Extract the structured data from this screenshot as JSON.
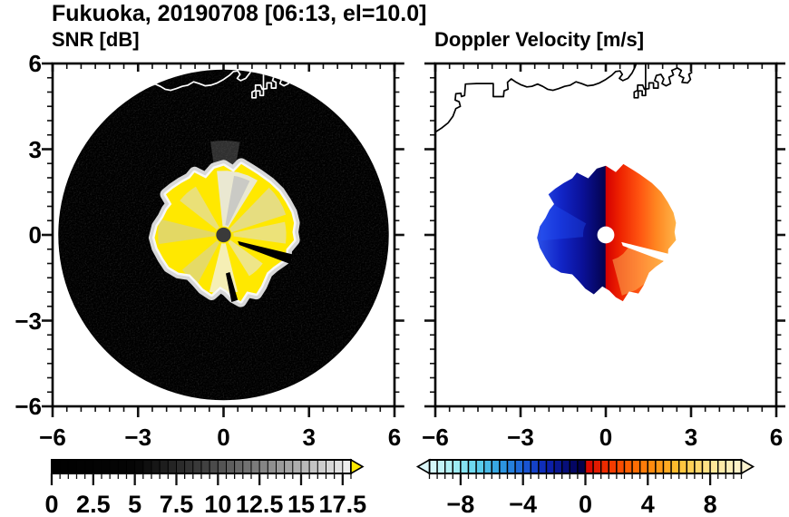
{
  "title": "Fukuoka, 20190708 [06:13, el=10.0]",
  "panels": [
    {
      "id": "snr",
      "subtitle": "SNR [dB]",
      "x_tick_labels": [
        "−6",
        "−3",
        "0",
        "3",
        "6"
      ],
      "y_tick_labels": [
        "6",
        "3",
        "0",
        "−3",
        "−6"
      ],
      "has_y_labels": true
    },
    {
      "id": "doppler",
      "subtitle": "Doppler Velocity [m/s]",
      "x_tick_labels": [
        "−6",
        "−3",
        "0",
        "3",
        "6"
      ],
      "y_tick_labels": [],
      "has_y_labels": false
    }
  ],
  "axes": {
    "min": -6,
    "max": 6,
    "major_ticks": [
      -6,
      -3,
      0,
      3,
      6
    ],
    "minor_step": 0.5
  },
  "map": {
    "coastlines": [
      [
        [
          -6.0,
          3.6
        ],
        [
          -5.78,
          3.74
        ],
        [
          -5.55,
          3.92
        ],
        [
          -5.38,
          4.15
        ],
        [
          -5.28,
          4.42
        ],
        [
          -5.12,
          4.5
        ],
        [
          -5.16,
          4.66
        ],
        [
          -5.3,
          4.72
        ],
        [
          -5.28,
          4.94
        ],
        [
          -5.1,
          4.96
        ],
        [
          -5.08,
          4.84
        ],
        [
          -4.97,
          4.88
        ],
        [
          -4.94,
          5.28
        ],
        [
          -4.55,
          5.3
        ],
        [
          -4.2,
          5.3
        ],
        [
          -3.96,
          5.3
        ],
        [
          -3.96,
          4.84
        ],
        [
          -3.6,
          4.84
        ],
        [
          -3.58,
          5.04
        ],
        [
          -3.44,
          5.1
        ],
        [
          -3.46,
          5.34
        ],
        [
          -3.33,
          5.46
        ],
        [
          -3.18,
          5.36
        ],
        [
          -3.0,
          5.26
        ],
        [
          -2.78,
          5.18
        ],
        [
          -2.6,
          5.2
        ],
        [
          -2.4,
          5.28
        ],
        [
          -2.22,
          5.2
        ],
        [
          -2.05,
          5.1
        ],
        [
          -1.86,
          5.06
        ],
        [
          -1.66,
          5.12
        ],
        [
          -1.45,
          5.2
        ],
        [
          -1.25,
          5.24
        ],
        [
          -1.05,
          5.36
        ],
        [
          -0.86,
          5.3
        ],
        [
          -0.65,
          5.22
        ],
        [
          -0.45,
          5.24
        ],
        [
          -0.22,
          5.32
        ],
        [
          0.0,
          5.44
        ],
        [
          0.2,
          5.58
        ],
        [
          0.35,
          5.72
        ],
        [
          0.5,
          5.74
        ],
        [
          0.58,
          5.62
        ],
        [
          0.48,
          5.48
        ],
        [
          0.6,
          5.4
        ],
        [
          0.78,
          5.48
        ],
        [
          0.92,
          5.66
        ],
        [
          1.02,
          5.86
        ],
        [
          1.08,
          6.02
        ]
      ],
      [
        [
          1.4,
          6.02
        ],
        [
          1.4,
          4.88
        ],
        [
          1.28,
          4.88
        ],
        [
          1.28,
          5.04
        ],
        [
          1.14,
          5.04
        ],
        [
          1.14,
          4.8
        ],
        [
          1.0,
          4.8
        ],
        [
          1.0,
          5.0
        ],
        [
          1.12,
          5.06
        ],
        [
          1.12,
          5.24
        ],
        [
          1.3,
          5.24
        ],
        [
          1.36,
          5.1
        ],
        [
          1.52,
          5.12
        ],
        [
          1.52,
          5.32
        ],
        [
          1.68,
          5.32
        ],
        [
          1.68,
          5.14
        ],
        [
          1.84,
          5.14
        ],
        [
          1.84,
          5.34
        ],
        [
          1.72,
          5.4
        ],
        [
          1.78,
          5.58
        ],
        [
          1.94,
          5.62
        ],
        [
          2.04,
          5.46
        ],
        [
          1.98,
          5.3
        ],
        [
          2.12,
          5.22
        ],
        [
          2.28,
          5.3
        ],
        [
          2.22,
          5.52
        ],
        [
          2.38,
          5.6
        ],
        [
          2.32,
          5.76
        ],
        [
          2.52,
          5.84
        ],
        [
          2.66,
          5.76
        ],
        [
          2.58,
          5.58
        ],
        [
          2.74,
          5.5
        ],
        [
          2.68,
          5.34
        ],
        [
          2.88,
          5.32
        ],
        [
          2.98,
          5.44
        ],
        [
          2.92,
          5.62
        ],
        [
          3.04,
          5.7
        ]
      ]
    ]
  },
  "chart_data": [
    {
      "type": "heatmap",
      "panel": "snr",
      "title": "SNR [dB]",
      "units": "dB",
      "x_range": [
        -6,
        6
      ],
      "y_range": [
        -6,
        6
      ],
      "scan_disk": {
        "cx": 0,
        "cy": 0,
        "radius": 5.8,
        "background": "#000000"
      },
      "echo_fill": "#ffe800",
      "echo_fringe": "#e4e4e4",
      "echo_outline": [
        [
          0.0,
          2.42
        ],
        [
          0.35,
          2.2
        ],
        [
          0.62,
          2.48
        ],
        [
          0.95,
          2.28
        ],
        [
          1.2,
          2.12
        ],
        [
          1.62,
          1.82
        ],
        [
          1.95,
          1.5
        ],
        [
          2.18,
          1.15
        ],
        [
          2.38,
          0.78
        ],
        [
          2.47,
          0.42
        ],
        [
          2.42,
          0.1
        ],
        [
          2.47,
          -0.18
        ],
        [
          2.2,
          -0.5
        ],
        [
          2.18,
          -0.82
        ],
        [
          1.75,
          -1.12
        ],
        [
          1.52,
          -1.32
        ],
        [
          1.32,
          -1.78
        ],
        [
          1.15,
          -2.05
        ],
        [
          0.82,
          -1.98
        ],
        [
          0.6,
          -2.32
        ],
        [
          0.35,
          -2.18
        ],
        [
          0.12,
          -1.95
        ],
        [
          -0.12,
          -1.8
        ],
        [
          -0.42,
          -2.08
        ],
        [
          -0.72,
          -1.88
        ],
        [
          -0.95,
          -1.62
        ],
        [
          -1.18,
          -1.38
        ],
        [
          -1.58,
          -1.32
        ],
        [
          -1.92,
          -1.12
        ],
        [
          -2.12,
          -0.82
        ],
        [
          -2.32,
          -0.45
        ],
        [
          -2.42,
          -0.1
        ],
        [
          -2.32,
          0.3
        ],
        [
          -2.12,
          0.6
        ],
        [
          -1.98,
          0.88
        ],
        [
          -1.82,
          1.08
        ],
        [
          -2.02,
          1.42
        ],
        [
          -1.78,
          1.62
        ],
        [
          -1.48,
          1.82
        ],
        [
          -1.18,
          1.98
        ],
        [
          -1.02,
          2.18
        ],
        [
          -0.62,
          1.98
        ],
        [
          -0.32,
          2.32
        ]
      ],
      "streaks": [
        {
          "az1": 58,
          "az2": 96,
          "r1": 0.3,
          "r2": 2.25,
          "color": "#e8e8e8",
          "opacity": 0.9
        },
        {
          "az1": 64,
          "az2": 80,
          "r1": 0.35,
          "r2": 2.1,
          "color": "#c2c2c2",
          "opacity": 0.8
        },
        {
          "az1": 18,
          "az2": 46,
          "r1": 0.3,
          "r2": 2.3,
          "color": "#d5d5d5",
          "opacity": 0.6
        },
        {
          "az1": -8,
          "az2": 12,
          "r1": 0.35,
          "r2": 2.2,
          "color": "#dddddd",
          "opacity": 0.55
        },
        {
          "az1": -58,
          "az2": -36,
          "r1": 0.3,
          "r2": 1.7,
          "color": "#e2e2e2",
          "opacity": 0.6
        },
        {
          "az1": -104,
          "az2": -76,
          "r1": 0.3,
          "r2": 2.05,
          "color": "#f2f2f2",
          "opacity": 0.75
        },
        {
          "az1": -140,
          "az2": -118,
          "r1": 0.3,
          "r2": 1.9,
          "color": "#cccccc",
          "opacity": 0.5
        },
        {
          "az1": 166,
          "az2": 188,
          "r1": 0.3,
          "r2": 2.3,
          "color": "#c8c8c8",
          "opacity": 0.5
        },
        {
          "az1": 120,
          "az2": 142,
          "r1": 0.3,
          "r2": 1.95,
          "color": "#d8d8d8",
          "opacity": 0.55
        }
      ],
      "plume": {
        "az1": 80,
        "az2": 98,
        "r1": 2.1,
        "r2": 3.3,
        "color": "#8a8a8a",
        "opacity": 0.35
      },
      "blocked_sectors": [
        [
          [
            0.5,
            -0.22
          ],
          [
            2.42,
            -0.68
          ],
          [
            2.35,
            -1.02
          ],
          [
            0.55,
            -0.35
          ]
        ],
        [
          [
            0.22,
            -1.3
          ],
          [
            0.5,
            -2.28
          ],
          [
            0.28,
            -2.35
          ],
          [
            0.08,
            -1.35
          ]
        ]
      ],
      "center_dot": {
        "r": 0.26,
        "color": "#3a3a3a"
      }
    },
    {
      "type": "heatmap",
      "panel": "doppler",
      "title": "Doppler Velocity [m/s]",
      "units": "m/s",
      "x_range": [
        -6,
        6
      ],
      "y_range": [
        -6,
        6
      ],
      "echo_outline": [
        [
          0.0,
          2.42
        ],
        [
          0.35,
          2.2
        ],
        [
          0.62,
          2.48
        ],
        [
          0.95,
          2.28
        ],
        [
          1.2,
          2.12
        ],
        [
          1.62,
          1.82
        ],
        [
          1.95,
          1.5
        ],
        [
          2.18,
          1.15
        ],
        [
          2.38,
          0.78
        ],
        [
          2.47,
          0.42
        ],
        [
          2.42,
          0.1
        ],
        [
          2.47,
          -0.18
        ],
        [
          2.2,
          -0.5
        ],
        [
          2.18,
          -0.82
        ],
        [
          1.75,
          -1.12
        ],
        [
          1.52,
          -1.32
        ],
        [
          1.32,
          -1.78
        ],
        [
          1.15,
          -2.05
        ],
        [
          0.82,
          -1.98
        ],
        [
          0.6,
          -2.32
        ],
        [
          0.35,
          -2.18
        ],
        [
          0.12,
          -1.95
        ],
        [
          -0.12,
          -1.8
        ],
        [
          -0.42,
          -2.08
        ],
        [
          -0.72,
          -1.88
        ],
        [
          -0.95,
          -1.62
        ],
        [
          -1.18,
          -1.38
        ],
        [
          -1.58,
          -1.32
        ],
        [
          -1.92,
          -1.12
        ],
        [
          -2.12,
          -0.82
        ],
        [
          -2.32,
          -0.45
        ],
        [
          -2.42,
          -0.1
        ],
        [
          -2.32,
          0.3
        ],
        [
          -2.12,
          0.6
        ],
        [
          -1.98,
          0.88
        ],
        [
          -1.82,
          1.08
        ],
        [
          -2.02,
          1.42
        ],
        [
          -1.78,
          1.62
        ],
        [
          -1.48,
          1.82
        ],
        [
          -1.18,
          1.98
        ],
        [
          -1.02,
          2.18
        ],
        [
          -0.62,
          1.98
        ],
        [
          -0.32,
          2.32
        ]
      ],
      "fill_stops": [
        [
          -2.42,
          "#2b50e8"
        ],
        [
          -1.6,
          "#1226c8"
        ],
        [
          -0.8,
          "#0a1096"
        ],
        [
          -0.02,
          "#04034e"
        ],
        [
          0.0,
          "#d40000"
        ],
        [
          0.5,
          "#ee2200"
        ],
        [
          1.2,
          "#ff5511"
        ],
        [
          1.8,
          "#ff8822"
        ],
        [
          2.47,
          "#ffb347"
        ]
      ],
      "patches": [
        {
          "az1": -75,
          "az2": -20,
          "r1": 0.9,
          "r2": 2.2,
          "color": "#ffcc66",
          "opacity": 0.45
        },
        {
          "az1": 150,
          "az2": 185,
          "r1": 0.8,
          "r2": 2.3,
          "color": "#2255ff",
          "opacity": 0.35
        }
      ],
      "no_data_wedge": [
        [
          0.55,
          -0.25
        ],
        [
          2.45,
          -0.72
        ],
        [
          2.4,
          -1.05
        ],
        [
          0.6,
          -0.38
        ]
      ],
      "center_dot": {
        "r": 0.3,
        "color": "#ffffff"
      }
    }
  ],
  "colorbars": [
    {
      "id": "snr",
      "min": 0,
      "max": 18,
      "cell": 0.5,
      "labels": [
        "0",
        "2.5",
        "5",
        "7.5",
        "10",
        "12.5",
        "15",
        "17.5"
      ],
      "label_values": [
        0,
        2.5,
        5,
        7.5,
        10,
        12.5,
        15,
        17.5
      ],
      "major_tick_step": 2.5,
      "stops": [
        [
          0,
          "#000000"
        ],
        [
          5,
          "#050505"
        ],
        [
          9,
          "#3c3c3c"
        ],
        [
          13,
          "#8a8a8a"
        ],
        [
          18,
          "#f2f2f2"
        ]
      ],
      "over_color": "#ffe800",
      "has_left_arrow": false,
      "has_right_arrow": true
    },
    {
      "id": "doppler",
      "min": -10,
      "max": 10,
      "cell": 0.5,
      "labels": [
        "−8",
        "−4",
        "0",
        "4",
        "8"
      ],
      "label_values": [
        -8,
        -4,
        0,
        4,
        8
      ],
      "major_tick_values": [
        -8,
        -4,
        0,
        4,
        8
      ],
      "stops": [
        [
          -10,
          "#dcf7f9"
        ],
        [
          -8.5,
          "#a9eff4"
        ],
        [
          -7,
          "#62d5ee"
        ],
        [
          -5.5,
          "#2f9fe0"
        ],
        [
          -4,
          "#1b5ed8"
        ],
        [
          -2.5,
          "#0d24b4"
        ],
        [
          -0.5,
          "#030257"
        ],
        [
          -0.01,
          "#01003f"
        ],
        [
          0,
          "#d40000"
        ],
        [
          1.5,
          "#f23300"
        ],
        [
          3,
          "#ff6600"
        ],
        [
          4.5,
          "#ff9211"
        ],
        [
          6,
          "#ffc233"
        ],
        [
          8,
          "#ffe591"
        ],
        [
          10,
          "#fbf3cf"
        ]
      ],
      "has_left_arrow": true,
      "has_right_arrow": true
    }
  ],
  "colors": {
    "frame": "#000000",
    "text": "#000000",
    "coast_right": "#000000",
    "coast_left": "#ffffff"
  }
}
